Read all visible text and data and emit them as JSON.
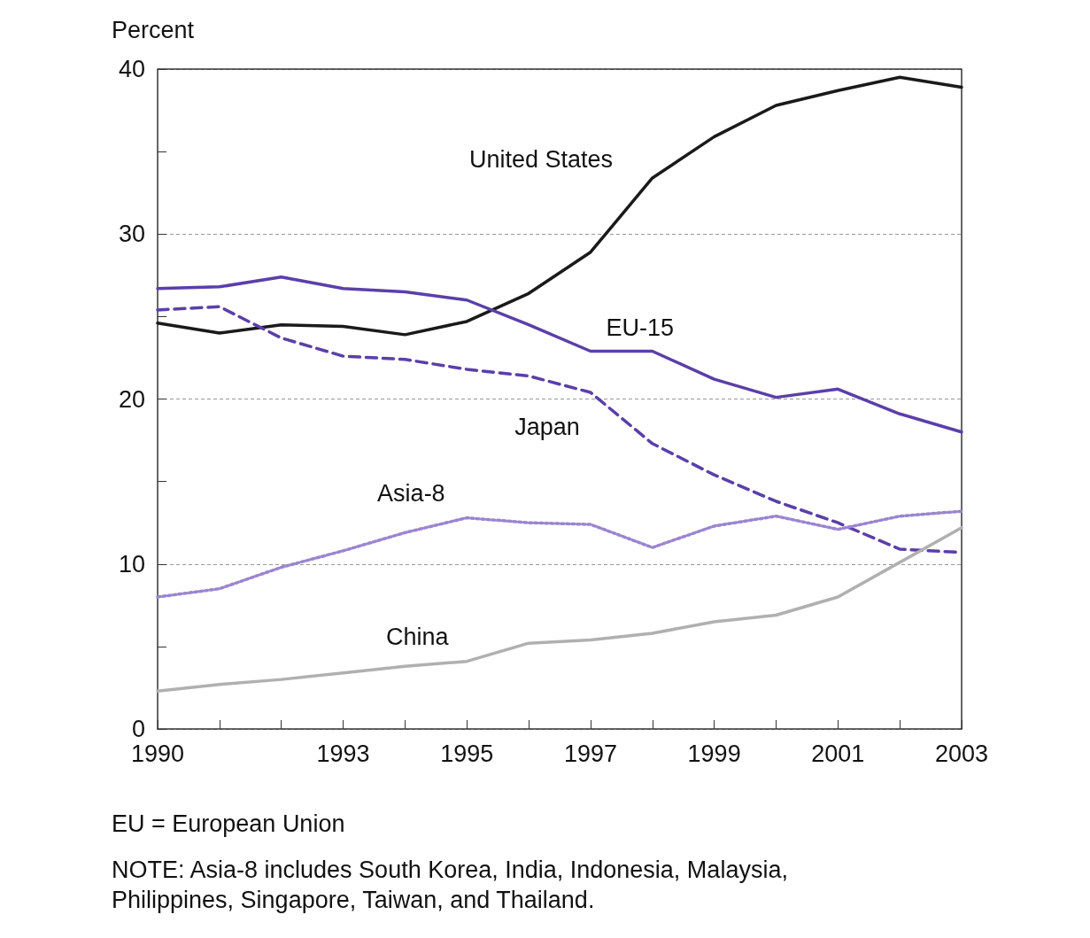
{
  "chart_data": {
    "type": "line",
    "ylabel": "Percent",
    "x": [
      1990,
      1991,
      1992,
      1993,
      1994,
      1995,
      1996,
      1997,
      1998,
      1999,
      2000,
      2001,
      2002,
      2003
    ],
    "xlim": [
      1990,
      2003
    ],
    "xticks": [
      1990,
      {
        "value": 1991,
        "label": null
      },
      {
        "value": 1992,
        "label": null
      },
      1993,
      {
        "value": 1994,
        "label": null
      },
      1995,
      {
        "value": 1996,
        "label": null
      },
      1997,
      {
        "value": 1998,
        "label": null
      },
      1999,
      {
        "value": 2000,
        "label": null
      },
      2001,
      {
        "value": 2002,
        "label": null
      },
      2003
    ],
    "ylim": [
      0,
      40
    ],
    "yticks": [
      0,
      {
        "value": 5,
        "label": null
      },
      10,
      {
        "value": 15,
        "label": null
      },
      20,
      {
        "value": 25,
        "label": null
      },
      30,
      {
        "value": 35,
        "label": null
      },
      40
    ],
    "grid": "y",
    "legend": false,
    "marker": "none",
    "series": [
      {
        "name": "United States",
        "color": "#1a1a1a",
        "line_style": "solid",
        "values": [
          24.6,
          24.0,
          24.5,
          24.4,
          23.9,
          24.7,
          26.4,
          28.9,
          33.4,
          35.9,
          37.8,
          38.7,
          39.5,
          38.9
        ]
      },
      {
        "name": "EU-15",
        "color": "#5b3fa8",
        "line_style": "solid",
        "values": [
          26.7,
          26.8,
          27.4,
          26.7,
          26.5,
          26.0,
          24.5,
          22.9,
          22.9,
          21.2,
          20.1,
          20.6,
          19.1,
          18.0
        ]
      },
      {
        "name": "Japan",
        "color": "#5b3fa8",
        "line_style": "dashed",
        "values": [
          25.4,
          25.6,
          23.7,
          22.6,
          22.4,
          21.8,
          21.4,
          20.4,
          17.3,
          15.4,
          13.8,
          12.5,
          10.9,
          10.7
        ]
      },
      {
        "name": "Asia-8",
        "color": "#9a85d0",
        "line_style": "dotted",
        "values": [
          8.0,
          8.5,
          9.8,
          10.8,
          11.9,
          12.8,
          12.5,
          12.4,
          11.0,
          12.3,
          12.9,
          12.1,
          12.9,
          13.2
        ]
      },
      {
        "name": "China",
        "color": "#b0b0b0",
        "line_style": "solid",
        "values": [
          2.3,
          2.7,
          3.0,
          3.4,
          3.8,
          4.1,
          5.2,
          5.4,
          5.8,
          6.5,
          6.9,
          8.0,
          10.1,
          12.2
        ]
      }
    ],
    "annotations": [
      "EU = European Union",
      "NOTE: Asia-8 includes South Korea, India, Indonesia, Malaysia,\nPhilippines, Singapore, Taiwan, and Thailand."
    ]
  }
}
